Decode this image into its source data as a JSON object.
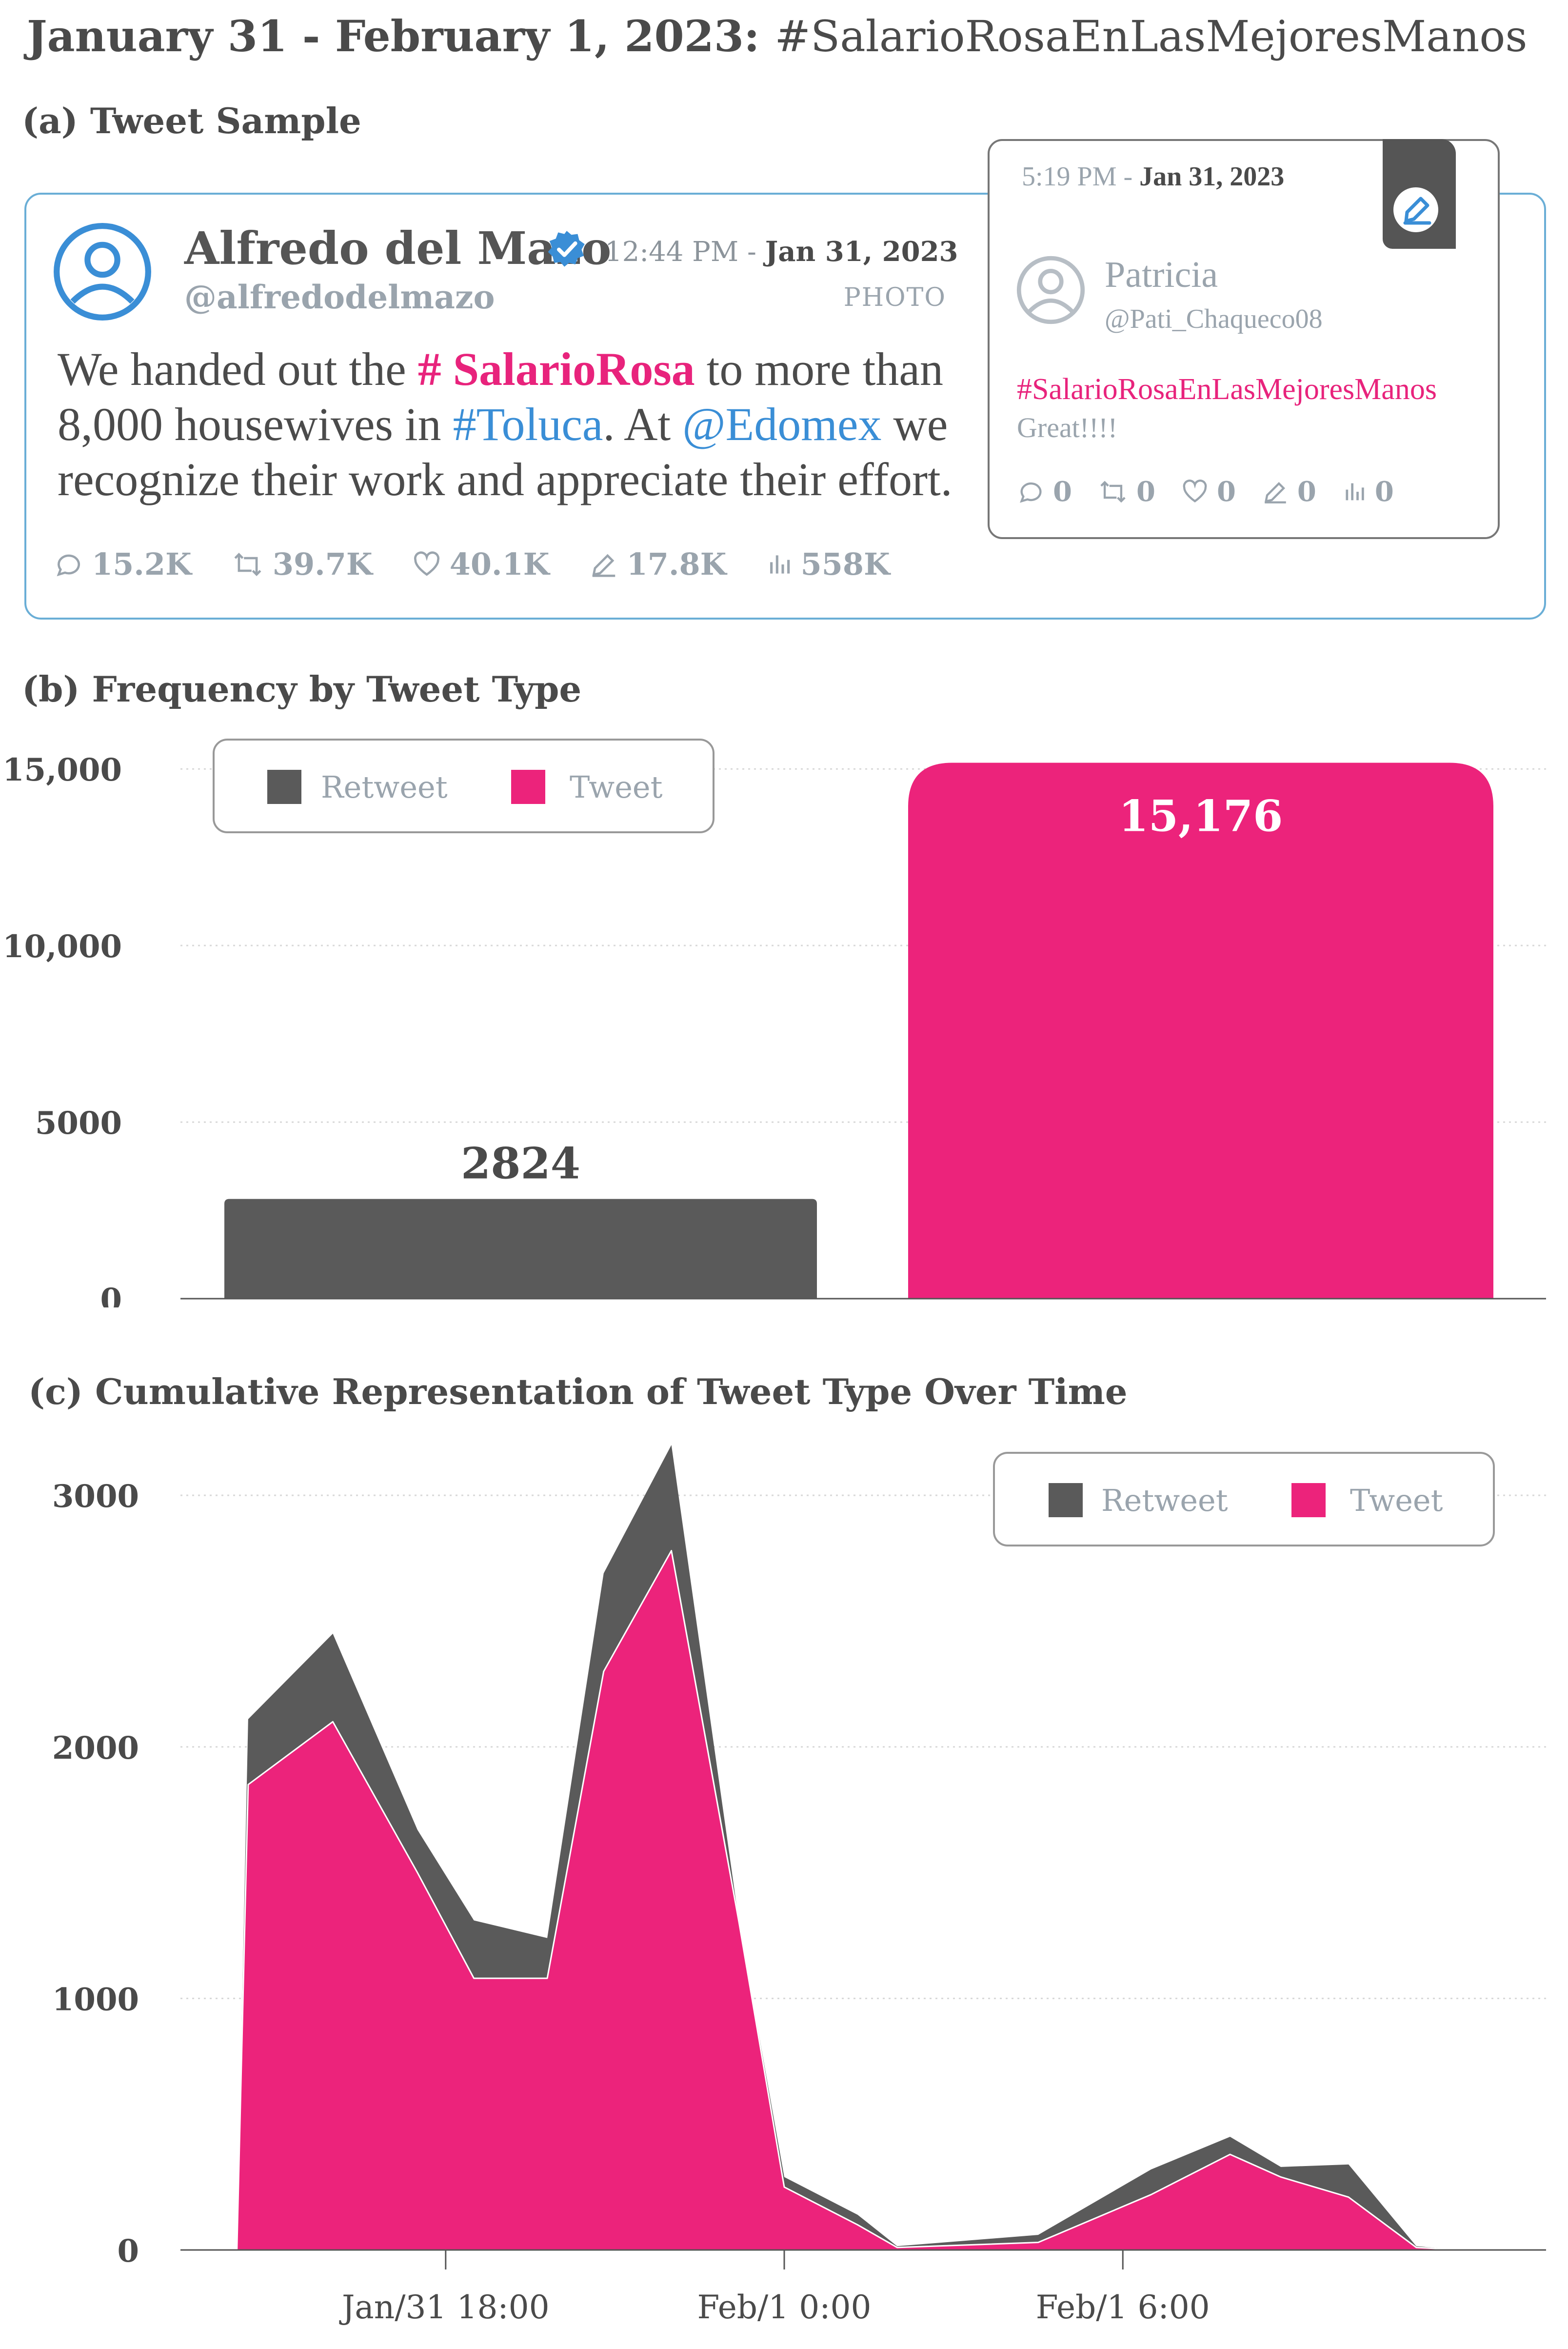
{
  "header": {
    "title_date": "January 31 - February 1, 2023:",
    "title_hashtag": "#SalarioRosaEnLasMejoresManos"
  },
  "sections": {
    "a": "(a) Tweet Sample",
    "b": "(b) Frequency by Tweet Type",
    "c": "(c) Cumulative Representation of Tweet Type Over Time"
  },
  "tweet": {
    "name": "Alfredo del Mazo",
    "handle": "@alfredodelmazo",
    "time": "12:44 PM -",
    "date": "Jan 31, 2023",
    "media_type": "PHOTO",
    "text_parts": {
      "p1": "We handed out the ",
      "h1": "# SalarioRosa",
      "p2": " to more than 8,000 housewives in ",
      "h2": "#Toluca",
      "p3": ". At ",
      "h3": "@Edomex",
      "p4": " we recognize their work and appreciate their effort."
    },
    "stats": {
      "replies": "15.2K",
      "retweets": "39.7K",
      "likes": "40.1K",
      "edits": "17.8K",
      "views": "558K"
    }
  },
  "reply": {
    "time": "5:19 PM -",
    "date": "Jan 31, 2023",
    "name": "Patricia",
    "handle": "@Pati_Chaqueco08",
    "hashtag": "#SalarioRosaEnLasMejoresManos",
    "text": "Great!!!!",
    "stats": {
      "replies": "0",
      "retweets": "0",
      "likes": "0",
      "edits": "0",
      "views": "0"
    }
  },
  "colors": {
    "retweet": "#5a5a5a",
    "tweet": "#ec237b",
    "accent": "#3a8ed6",
    "card_border": "#6aaed6"
  },
  "chart_data": [
    {
      "type": "bar",
      "title": "(b) Frequency by Tweet Type",
      "categories": [
        "Retweet",
        "Tweet"
      ],
      "values": [
        2824,
        15176
      ],
      "value_labels": [
        "2824",
        "15,176"
      ],
      "yticks": [
        0,
        5000,
        10000,
        15000
      ],
      "ytick_labels": [
        "0",
        "5000",
        "10,000",
        "15,000"
      ],
      "ylim": [
        0,
        15500
      ],
      "legend": [
        "Retweet",
        "Tweet"
      ],
      "legend_position": "top-left",
      "grid": true
    },
    {
      "type": "area",
      "title": "(c) Cumulative Representation of Tweet Type Over Time",
      "x_hours": [
        14.3,
        14.5,
        16.0,
        17.5,
        18.5,
        19.8,
        20.8,
        22.0,
        23.2,
        24.0,
        25.3,
        26.0,
        28.5,
        30.5,
        31.9,
        32.8,
        34.0,
        35.2,
        36.0
      ],
      "series": [
        {
          "name": "Tweet",
          "values": [
            0,
            1850,
            2100,
            1500,
            1080,
            1080,
            2300,
            2780,
            1300,
            250,
            100,
            10,
            30,
            220,
            380,
            290,
            210,
            10,
            0
          ]
        },
        {
          "name": "Retweet",
          "values": [
            0,
            260,
            350,
            170,
            230,
            160,
            390,
            420,
            0,
            40,
            40,
            5,
            30,
            100,
            70,
            40,
            130,
            5,
            0
          ]
        }
      ],
      "stacked": true,
      "xticks_hours": [
        18,
        24,
        30
      ],
      "xtick_labels": [
        "Jan/31 18:00",
        "Feb/1 0:00",
        "Feb/1 6:00"
      ],
      "yticks": [
        0,
        1000,
        2000,
        3000
      ],
      "ytick_labels": [
        "0",
        "1000",
        "2000",
        "3000"
      ],
      "ylim": [
        0,
        3200
      ],
      "xlim": [
        13.3,
        37.5
      ],
      "legend": [
        "Retweet",
        "Tweet"
      ],
      "legend_position": "top-right",
      "grid": true
    }
  ]
}
